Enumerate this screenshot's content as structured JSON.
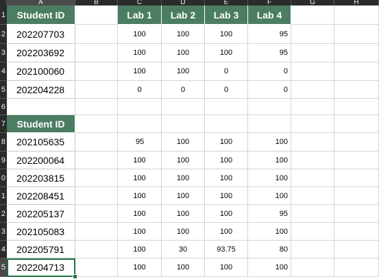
{
  "sheet": {
    "column_headers": [
      "A",
      "B",
      "C",
      "D",
      "E",
      "F",
      "G",
      "H"
    ],
    "row_numbers": [
      "1",
      "2",
      "3",
      "4",
      "5",
      "6",
      "7",
      "8",
      "9",
      "0",
      "1",
      "2",
      "3",
      "4",
      "5"
    ],
    "table1": {
      "header": [
        "Student ID",
        "Lab 1",
        "Lab 2",
        "Lab 3",
        "Lab 4"
      ],
      "rows": [
        [
          "202207703",
          "100",
          "100",
          "100",
          "95"
        ],
        [
          "202203692",
          "100",
          "100",
          "100",
          "95"
        ],
        [
          "202100060",
          "100",
          "100",
          "0",
          "0"
        ],
        [
          "202204228",
          "0",
          "0",
          "0",
          "0"
        ]
      ]
    },
    "table2": {
      "header": [
        "Student ID"
      ],
      "rows": [
        [
          "202105635",
          "95",
          "100",
          "100",
          "100"
        ],
        [
          "202200064",
          "100",
          "100",
          "100",
          "100"
        ],
        [
          "202203815",
          "100",
          "100",
          "100",
          "100"
        ],
        [
          "202208451",
          "100",
          "100",
          "100",
          "100"
        ],
        [
          "202205137",
          "100",
          "100",
          "100",
          "95"
        ],
        [
          "202105083",
          "100",
          "100",
          "100",
          "100"
        ],
        [
          "202205791",
          "100",
          "30",
          "93.75",
          "80"
        ],
        [
          "202204713",
          "100",
          "100",
          "100",
          "100"
        ]
      ]
    }
  }
}
